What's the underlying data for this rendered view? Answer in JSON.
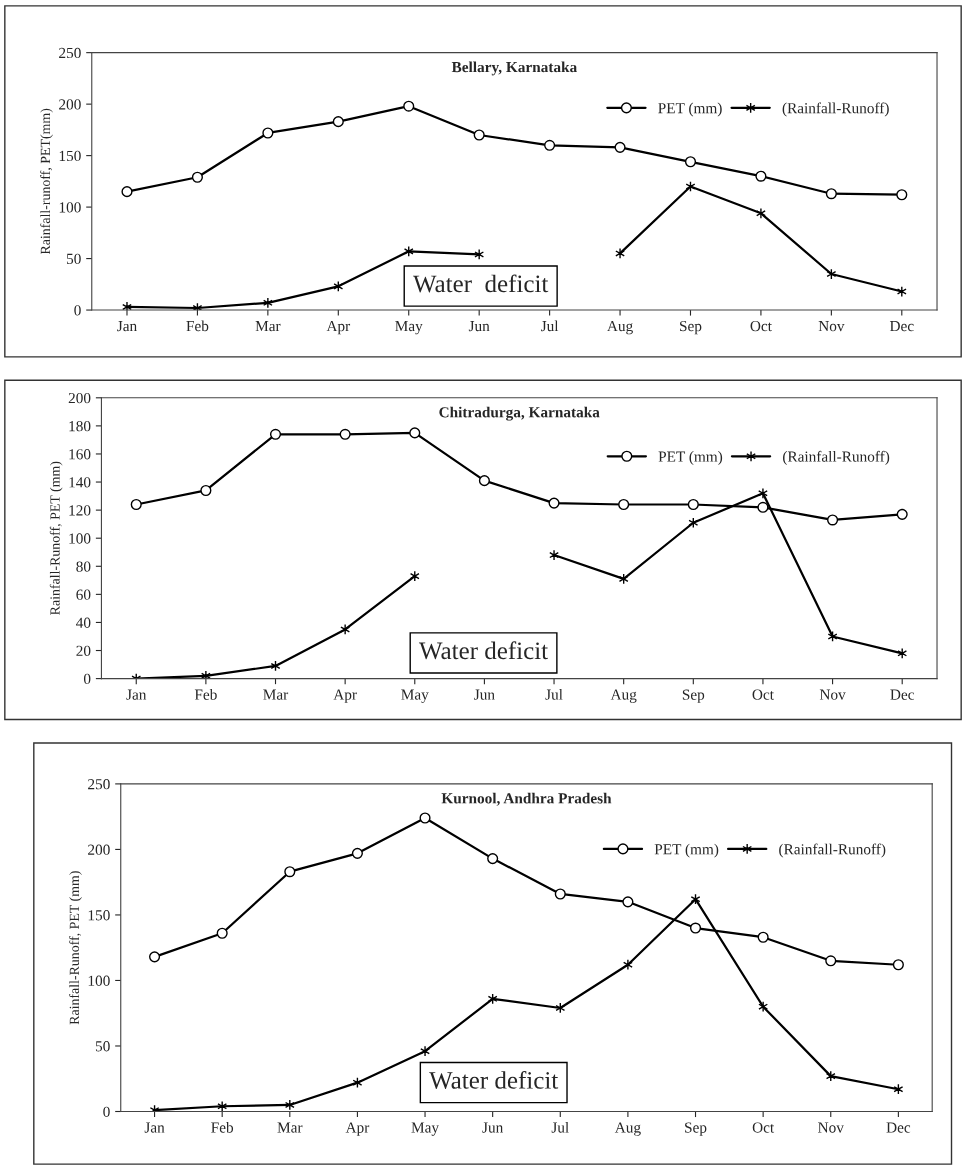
{
  "chart_data": [
    {
      "type": "line",
      "title": "Bellary, Karnataka",
      "ylabel": "Rainfall-runoff, PET(mm)",
      "categories": [
        "Jan",
        "Feb",
        "Mar",
        "Apr",
        "May",
        "Jun",
        "Jul",
        "Aug",
        "Sep",
        "Oct",
        "Nov",
        "Dec"
      ],
      "series": [
        {
          "name": "PET (mm)",
          "color": "#000000",
          "marker": "circle",
          "values": [
            115,
            129,
            172,
            183,
            198,
            170,
            160,
            158,
            144,
            130,
            113,
            112
          ]
        },
        {
          "name": "(Rainfall-Runoff)",
          "color": "#000000",
          "marker": "cross",
          "values": [
            3,
            2,
            7,
            23,
            57,
            54,
            null,
            55,
            120,
            94,
            35,
            18
          ]
        }
      ],
      "ylim": [
        0,
        250
      ],
      "yticks": [
        0,
        50,
        100,
        150,
        200,
        250
      ],
      "grid": false,
      "legend": "top right",
      "line_style": "solid",
      "annotations": [
        "Water  deficit"
      ]
    },
    {
      "type": "line",
      "title": "Chitradurga, Karnataka",
      "ylabel": "Rainfall-Runoff, PET (mm)",
      "categories": [
        "Jan",
        "Feb",
        "Mar",
        "Apr",
        "May",
        "Jun",
        "Jul",
        "Aug",
        "Sep",
        "Oct",
        "Nov",
        "Dec"
      ],
      "series": [
        {
          "name": "PET (mm)",
          "color": "#000000",
          "marker": "circle",
          "values": [
            124,
            134,
            174,
            174,
            175,
            141,
            125,
            124,
            124,
            122,
            113,
            117
          ]
        },
        {
          "name": "(Rainfall-Runoff)",
          "color": "#000000",
          "marker": "cross",
          "values": [
            0,
            2,
            9,
            35,
            73,
            null,
            88,
            71,
            111,
            132,
            30,
            18
          ]
        }
      ],
      "ylim": [
        0,
        200
      ],
      "yticks": [
        0,
        20,
        40,
        60,
        80,
        100,
        120,
        140,
        160,
        180,
        200
      ],
      "grid": false,
      "legend": "top right",
      "line_style": "solid",
      "annotations": [
        "Water deficit"
      ]
    },
    {
      "type": "line",
      "title": "Kurnool, Andhra Pradesh",
      "ylabel": "Rainfall-Runoff, PET (mm)",
      "categories": [
        "Jan",
        "Feb",
        "Mar",
        "Apr",
        "May",
        "Jun",
        "Jul",
        "Aug",
        "Sep",
        "Oct",
        "Nov",
        "Dec"
      ],
      "series": [
        {
          "name": "PET (mm)",
          "color": "#000000",
          "marker": "circle",
          "values": [
            118,
            136,
            183,
            197,
            224,
            193,
            166,
            160,
            140,
            133,
            115,
            112
          ]
        },
        {
          "name": "(Rainfall-Runoff)",
          "color": "#000000",
          "marker": "cross",
          "values": [
            1,
            4,
            5,
            22,
            46,
            86,
            79,
            112,
            162,
            80,
            27,
            17
          ]
        }
      ],
      "ylim": [
        0,
        250
      ],
      "yticks": [
        0,
        50,
        100,
        150,
        200,
        250
      ],
      "grid": false,
      "legend": "top right",
      "line_style": "solid",
      "annotations": [
        "Water deficit"
      ]
    }
  ]
}
